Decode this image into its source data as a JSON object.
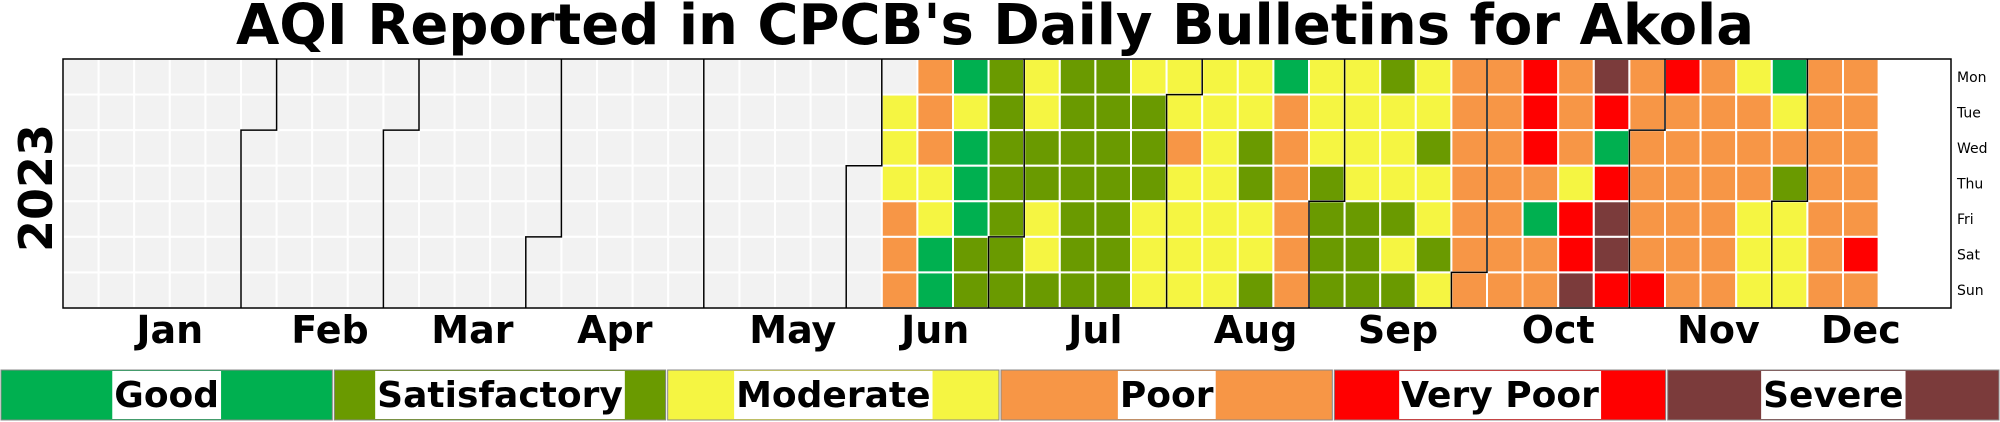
{
  "chart_data": {
    "type": "heatmap",
    "title": "AQI Reported in CPCB's Daily Bulletins for Akola",
    "year_label": "2023",
    "weekdays": [
      "Mon",
      "Tue",
      "Wed",
      "Thu",
      "Fri",
      "Sat",
      "Sun"
    ],
    "months": [
      "Jan",
      "Feb",
      "Mar",
      "Apr",
      "May",
      "Jun",
      "Jul",
      "Aug",
      "Sep",
      "Oct",
      "Nov",
      "Dec"
    ],
    "categories": [
      {
        "label": "Good",
        "color": "#00b050"
      },
      {
        "label": "Satisfactory",
        "color": "#6a9a00"
      },
      {
        "label": "Moderate",
        "color": "#f5f542"
      },
      {
        "label": "Poor",
        "color": "#f79646"
      },
      {
        "label": "Very Poor",
        "color": "#ff0000"
      },
      {
        "label": "Severe",
        "color": "#7b3b3b"
      }
    ],
    "no_data_color": "#f2f2f2",
    "category_legend": "G=Good, S=Satisfactory, M=Moderate, P=Poor, V=Very Poor, X=Severe, -=no data",
    "daily_category_by_week": [
      [
        "-",
        "-",
        "-",
        "-",
        "-",
        "-",
        "-"
      ],
      [
        "-",
        "-",
        "-",
        "-",
        "-",
        "-",
        "-"
      ],
      [
        "-",
        "-",
        "-",
        "-",
        "-",
        "-",
        "-"
      ],
      [
        "-",
        "-",
        "-",
        "-",
        "-",
        "-",
        "-"
      ],
      [
        "-",
        "-",
        "-",
        "-",
        "-",
        "-",
        "-"
      ],
      [
        "-",
        "-",
        "-",
        "-",
        "-",
        "-",
        "-"
      ],
      [
        "-",
        "-",
        "-",
        "-",
        "-",
        "-",
        "-"
      ],
      [
        "-",
        "-",
        "-",
        "-",
        "-",
        "-",
        "-"
      ],
      [
        "-",
        "-",
        "-",
        "-",
        "-",
        "-",
        "-"
      ],
      [
        "-",
        "-",
        "-",
        "-",
        "-",
        "-",
        "-"
      ],
      [
        "-",
        "-",
        "-",
        "-",
        "-",
        "-",
        "-"
      ],
      [
        "-",
        "-",
        "-",
        "-",
        "-",
        "-",
        "-"
      ],
      [
        "-",
        "-",
        "-",
        "-",
        "-",
        "-",
        "-"
      ],
      [
        "-",
        "-",
        "-",
        "-",
        "-",
        "-",
        "-"
      ],
      [
        "-",
        "-",
        "-",
        "-",
        "-",
        "-",
        "-"
      ],
      [
        "-",
        "-",
        "-",
        "-",
        "-",
        "-",
        "-"
      ],
      [
        "-",
        "-",
        "-",
        "-",
        "-",
        "-",
        "-"
      ],
      [
        "-",
        "-",
        "-",
        "-",
        "-",
        "-",
        "-"
      ],
      [
        "-",
        "-",
        "-",
        "-",
        "-",
        "-",
        "-"
      ],
      [
        "-",
        "-",
        "-",
        "-",
        "-",
        "-",
        "-"
      ],
      [
        "-",
        "-",
        "-",
        "-",
        "-",
        "-",
        "-"
      ],
      [
        "-",
        "-",
        "-",
        "-",
        "-",
        "-",
        "-"
      ],
      [
        "-",
        "-",
        "-",
        "-",
        "-",
        "-",
        "-"
      ],
      [
        "-",
        "M",
        "M",
        "M",
        "P",
        "P",
        "P"
      ],
      [
        "P",
        "P",
        "P",
        "M",
        "M",
        "G",
        "G"
      ],
      [
        "G",
        "M",
        "G",
        "G",
        "G",
        "S",
        "S"
      ],
      [
        "S",
        "S",
        "S",
        "S",
        "S",
        "S",
        "S"
      ],
      [
        "M",
        "M",
        "S",
        "S",
        "M",
        "M",
        "S"
      ],
      [
        "S",
        "S",
        "S",
        "S",
        "S",
        "S",
        "S"
      ],
      [
        "S",
        "S",
        "S",
        "S",
        "S",
        "S",
        "S"
      ],
      [
        "M",
        "S",
        "S",
        "S",
        "M",
        "M",
        "M"
      ],
      [
        "M",
        "M",
        "P",
        "M",
        "M",
        "M",
        "M"
      ],
      [
        "M",
        "M",
        "M",
        "M",
        "M",
        "M",
        "M"
      ],
      [
        "M",
        "M",
        "S",
        "S",
        "M",
        "M",
        "S"
      ],
      [
        "G",
        "P",
        "P",
        "P",
        "P",
        "P",
        "P"
      ],
      [
        "M",
        "M",
        "M",
        "S",
        "S",
        "S",
        "S"
      ],
      [
        "M",
        "M",
        "M",
        "M",
        "S",
        "S",
        "S"
      ],
      [
        "S",
        "M",
        "M",
        "M",
        "S",
        "M",
        "S"
      ],
      [
        "M",
        "M",
        "S",
        "M",
        "M",
        "S",
        "M"
      ],
      [
        "P",
        "P",
        "P",
        "P",
        "P",
        "P",
        "P"
      ],
      [
        "P",
        "P",
        "P",
        "P",
        "P",
        "P",
        "P"
      ],
      [
        "V",
        "V",
        "V",
        "P",
        "G",
        "P",
        "P"
      ],
      [
        "P",
        "P",
        "P",
        "M",
        "V",
        "V",
        "X"
      ],
      [
        "X",
        "V",
        "G",
        "V",
        "X",
        "X",
        "V"
      ],
      [
        "P",
        "P",
        "P",
        "P",
        "P",
        "P",
        "V"
      ],
      [
        "V",
        "P",
        "P",
        "P",
        "P",
        "P",
        "P"
      ],
      [
        "P",
        "P",
        "P",
        "P",
        "P",
        "P",
        "P"
      ],
      [
        "M",
        "P",
        "P",
        "P",
        "M",
        "M",
        "M"
      ],
      [
        "G",
        "M",
        "P",
        "S",
        "M",
        "M",
        "M"
      ],
      [
        "P",
        "P",
        "P",
        "P",
        "P",
        "P",
        "P"
      ],
      [
        "P",
        "P",
        "P",
        "P",
        "P",
        "V",
        "P"
      ]
    ]
  }
}
